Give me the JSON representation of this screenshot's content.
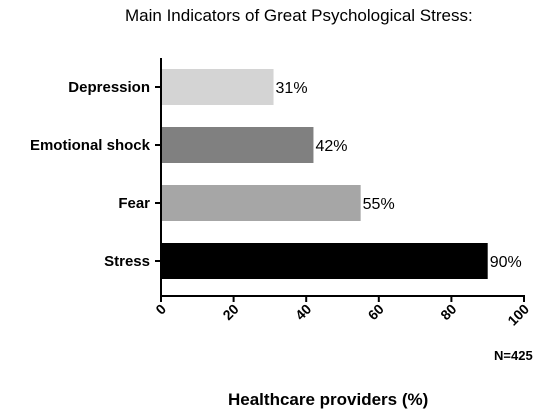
{
  "chart_data": {
    "type": "bar",
    "orientation": "horizontal",
    "title": "Main Indicators of Great Psychological Stress:",
    "categories": [
      "Depression",
      "Emotional shock",
      "Fear",
      "Stress"
    ],
    "values": [
      31,
      42,
      55,
      90
    ],
    "data_labels": [
      "31%",
      "42%",
      "55%",
      "90%"
    ],
    "colors": [
      "#d4d4d4",
      "#808080",
      "#a6a6a6",
      "#000000"
    ],
    "xlabel": "Healthcare providers (%)",
    "ylabel": "",
    "xlim": [
      0,
      100
    ],
    "x_ticks": [
      0,
      20,
      40,
      60,
      80,
      100
    ],
    "x_tick_labels": [
      "0",
      "20",
      "40",
      "60",
      "80",
      "100"
    ],
    "note": "N=425",
    "grid": false,
    "legend": "none"
  }
}
